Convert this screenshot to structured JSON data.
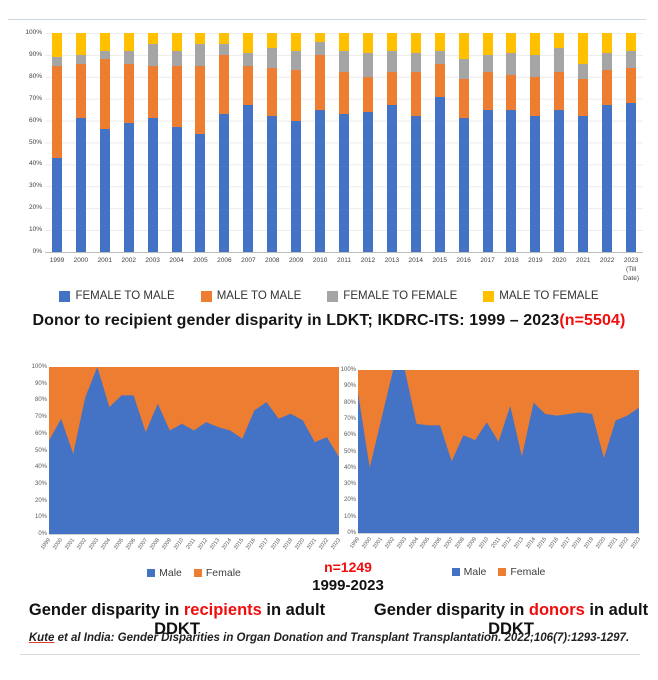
{
  "page": {
    "title_black": "Donor to recipient gender disparity in LDKT; IKDRC-ITS: 1999 – 2023",
    "title_red": "(n=5504)",
    "n_red": "n=1249",
    "n_years": "1999-2023",
    "caption_left": {
      "prefix": "Gender disparity in ",
      "highlight": "recipients",
      "suffix": " in adult DDKT"
    },
    "caption_right": {
      "prefix": "Gender disparity in ",
      "highlight": "donors",
      "suffix": " in adult DDKT"
    },
    "citation": {
      "underlined": "Kute",
      "rest": " et al India: Gender Disparities in Organ Donation and Transplant Transplantation. 2022;106(7):1293-1297."
    }
  },
  "colors": {
    "blue": "#4472C4",
    "orange": "#ED7D31",
    "gray": "#A5A5A5",
    "yellow": "#FFC000",
    "red_text": "#f20d0d"
  },
  "chart_data": [
    {
      "type": "bar",
      "stacked_100_percent": true,
      "title": "Donor to recipient gender disparity in LDKT; IKDRC-ITS: 1999 – 2023 (n=5504)",
      "categories": [
        "1999",
        "2000",
        "2001",
        "2002",
        "2003",
        "2004",
        "2005",
        "2006",
        "2007",
        "2008",
        "2009",
        "2010",
        "2011",
        "2012",
        "2013",
        "2014",
        "2015",
        "2016",
        "2017",
        "2018",
        "2019",
        "2020",
        "2021",
        "2022",
        "2023 (Till Date)"
      ],
      "series": [
        {
          "name": "FEMALE TO MALE",
          "color": "#4472C4",
          "values": [
            43,
            61,
            56,
            59,
            61,
            57,
            54,
            63,
            67,
            62,
            60,
            65,
            63,
            64,
            67,
            62,
            71,
            61,
            65,
            65,
            62,
            65,
            62,
            67,
            68
          ]
        },
        {
          "name": "MALE TO MALE",
          "color": "#ED7D31",
          "values": [
            42,
            25,
            32,
            27,
            24,
            28,
            31,
            27,
            18,
            22,
            23,
            25,
            19,
            16,
            15,
            20,
            15,
            18,
            17,
            16,
            18,
            17,
            17,
            16,
            16
          ]
        },
        {
          "name": "FEMALE TO FEMALE",
          "color": "#A5A5A5",
          "values": [
            4,
            4,
            4,
            6,
            10,
            7,
            10,
            5,
            6,
            9,
            9,
            6,
            10,
            11,
            10,
            9,
            6,
            9,
            8,
            10,
            10,
            11,
            7,
            8,
            8
          ]
        },
        {
          "name": "MALE TO FEMALE",
          "color": "#FFC000",
          "values": [
            11,
            10,
            8,
            8,
            5,
            8,
            5,
            5,
            9,
            7,
            8,
            4,
            8,
            9,
            8,
            9,
            8,
            12,
            10,
            9,
            10,
            7,
            14,
            9,
            8
          ]
        }
      ],
      "ylim": [
        0,
        100
      ],
      "ytick_step": 10,
      "ytick_suffix": "%",
      "grid": true,
      "legend_position": "bottom"
    },
    {
      "type": "area",
      "stacked_100_percent": true,
      "caption": "Gender disparity in recipients in adult DDKT",
      "x": [
        1999,
        2000,
        2001,
        2002,
        2003,
        2004,
        2005,
        2006,
        2007,
        2008,
        2009,
        2010,
        2011,
        2012,
        2013,
        2014,
        2015,
        2016,
        2017,
        2018,
        2019,
        2020,
        2021,
        2022,
        2023
      ],
      "series": [
        {
          "name": "Male",
          "color": "#4472C4",
          "values": [
            56,
            69,
            48,
            82,
            100,
            76,
            83,
            83,
            61,
            78,
            62,
            66,
            62,
            67,
            64,
            62,
            57,
            74,
            79,
            69,
            72,
            68,
            55,
            58,
            46
          ]
        },
        {
          "name": "Female",
          "color": "#ED7D31",
          "values": [
            44,
            31,
            52,
            18,
            0,
            24,
            17,
            17,
            39,
            22,
            38,
            34,
            38,
            33,
            36,
            38,
            43,
            26,
            21,
            31,
            28,
            32,
            45,
            42,
            54
          ]
        }
      ],
      "ylim": [
        0,
        100
      ],
      "ytick_step": 10,
      "ytick_suffix": "%",
      "annotation": "n=1249",
      "period": "1999-2023",
      "legend_position": "bottom"
    },
    {
      "type": "area",
      "stacked_100_percent": true,
      "caption": "Gender disparity in donors in adult DDKT",
      "x": [
        1999,
        2000,
        2001,
        2002,
        2003,
        2004,
        2005,
        2006,
        2007,
        2008,
        2009,
        2010,
        2011,
        2012,
        2013,
        2014,
        2015,
        2016,
        2017,
        2018,
        2019,
        2020,
        2021,
        2022,
        2023
      ],
      "series": [
        {
          "name": "Male",
          "color": "#4472C4",
          "values": [
            86,
            40,
            70,
            100,
            100,
            67,
            66,
            66,
            44,
            60,
            57,
            68,
            56,
            78,
            47,
            80,
            73,
            72,
            73,
            74,
            73,
            46,
            69,
            72,
            77
          ]
        },
        {
          "name": "Female",
          "color": "#ED7D31",
          "values": [
            14,
            60,
            30,
            0,
            0,
            33,
            34,
            34,
            56,
            40,
            43,
            32,
            44,
            22,
            53,
            20,
            27,
            28,
            27,
            26,
            27,
            54,
            31,
            28,
            23
          ]
        }
      ],
      "ylim": [
        0,
        100
      ],
      "ytick_step": 10,
      "ytick_suffix": "%",
      "legend_position": "bottom"
    }
  ]
}
